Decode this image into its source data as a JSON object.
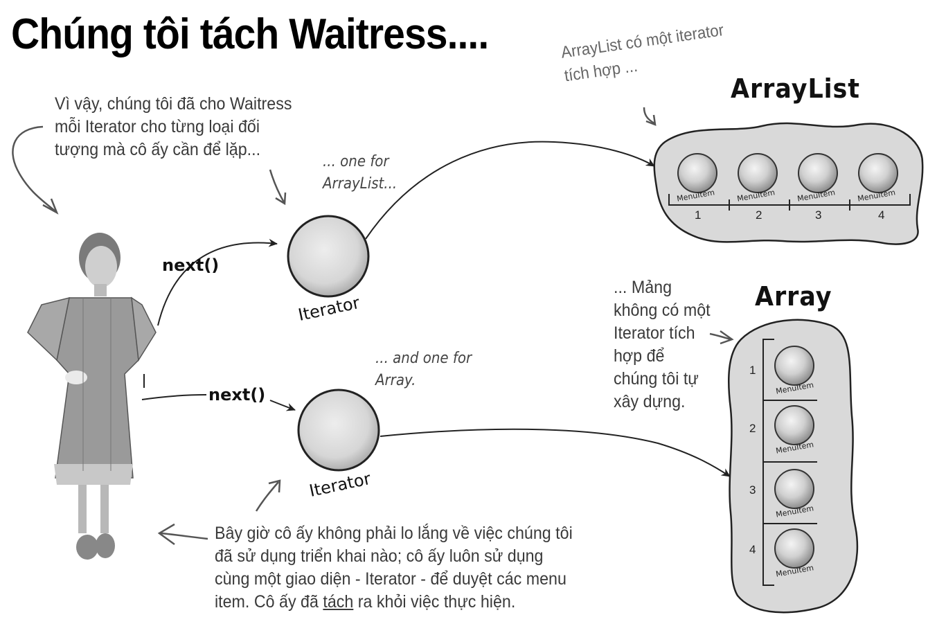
{
  "title": "Chúng tôi tách Waitress....",
  "note_top_left": [
    "Vì vậy, chúng tôi đã cho Waitress",
    "mỗi Iterator cho từng loại đối",
    "tượng mà cô ấy cần để lặp..."
  ],
  "note_one_for_arraylist": [
    "... one for",
    "ArrayList..."
  ],
  "note_and_one_for_array": [
    "... and one for",
    "Array."
  ],
  "note_arraylist_has_iterator": [
    "ArrayList có một iterator",
    "tích hợp ..."
  ],
  "note_array_no_iterator": [
    "... Mảng",
    "không có một",
    "Iterator tích",
    "hợp để",
    "chúng tôi tự",
    "xây dựng."
  ],
  "note_bottom": [
    "Bây giờ cô ấy không phải lo lắng về việc chúng tôi",
    "đã sử dụng triển khai nào; cô ấy luôn sử dụng",
    "cùng một giao diện - Iterator - để duyệt các menu"
  ],
  "note_bottom_last": {
    "before": "item. Cô ấy đã ",
    "underlined": "tách",
    "after": " ra khỏi việc thực hiện."
  },
  "next_label_1": "next()",
  "next_label_2": "next()",
  "iterator_label_1": "Iterator",
  "iterator_label_2": "Iterator",
  "arraylist_title": "ArrayList",
  "array_title": "Array",
  "arraylist_items": [
    {
      "label": "MenuItem",
      "index": "1"
    },
    {
      "label": "MenuItem",
      "index": "2"
    },
    {
      "label": "MenuItem",
      "index": "3"
    },
    {
      "label": "MenuItem",
      "index": "4"
    }
  ],
  "array_items": [
    {
      "label": "MenuItem",
      "index": "1"
    },
    {
      "label": "MenuItem",
      "index": "2"
    },
    {
      "label": "MenuItem",
      "index": "3"
    },
    {
      "label": "MenuItem",
      "index": "4"
    }
  ]
}
